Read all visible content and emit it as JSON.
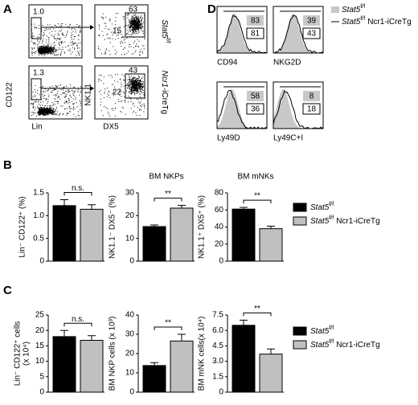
{
  "panel_a": {
    "label": "A",
    "rows": [
      {
        "lin_gate": "1.0",
        "nk_gates": [
          63,
          15
        ],
        "genotype": {
          "gene": "Stat5",
          "sup": "f/f"
        }
      },
      {
        "lin_gate": "1.3",
        "nk_gates": [
          43,
          22
        ],
        "genotype": {
          "gene": "Ncr1",
          "suffix": "-iCreTg"
        }
      }
    ],
    "lin_axis": {
      "x": "Lin",
      "y": "CD122"
    },
    "nk_axis": {
      "x": "DX5",
      "y": "NK1.1"
    }
  },
  "panel_d": {
    "label": "D",
    "plots": [
      {
        "marker": "CD94",
        "values": [
          83,
          81
        ]
      },
      {
        "marker": "NKG2D",
        "values": [
          39,
          43
        ]
      },
      {
        "marker": "Ly49D",
        "values": [
          58,
          36
        ]
      },
      {
        "marker": "Ly49C+I",
        "values": [
          8,
          18
        ]
      }
    ],
    "legend": [
      {
        "gene": "Stat5",
        "sup": "f/f",
        "color": "#c8c8c8"
      },
      {
        "gene": "Stat5",
        "sup": "f/f",
        "suffix": "Ncr1-iCreTg",
        "color": "#000000"
      }
    ]
  },
  "panel_b": {
    "label": "B",
    "legend": [
      {
        "gene": "Stat5",
        "sup": "f/f",
        "color": "#000000"
      },
      {
        "gene": "Stat5",
        "sup": "f/f",
        "suffix": "Ncr1-iCreTg",
        "color": "#c0c0c0"
      }
    ]
  },
  "panel_c": {
    "label": "C",
    "legend": [
      {
        "gene": "Stat5",
        "sup": "f/f",
        "color": "#000000"
      },
      {
        "gene": "Stat5",
        "sup": "f/f",
        "suffix": "Ncr1-iCreTg",
        "color": "#c0c0c0"
      }
    ]
  },
  "chart_data": [
    {
      "type": "bar",
      "ylabel": "Lin⁻ CD122⁺ (%)",
      "annotation": "n.s.",
      "ylim": [
        0,
        1.5
      ],
      "yticks": [
        0,
        0.5,
        {
          "value": 1,
          "label": "1.0"
        },
        1.5
      ],
      "series": [
        {
          "color": "#000000",
          "values": [
            1.22
          ],
          "errors": [
            0.13
          ]
        },
        {
          "color": "#c0c0c0",
          "values": [
            1.14
          ],
          "errors": [
            0.1
          ]
        }
      ]
    },
    {
      "type": "bar",
      "title": "BM NKPs",
      "ylabel": "NK1.1⁻ DX5⁻ (%)",
      "annotation": "**",
      "ylim": [
        0,
        30
      ],
      "yticks": [
        0,
        10,
        20,
        30
      ],
      "series": [
        {
          "color": "#000000",
          "values": [
            15.2
          ],
          "errors": [
            0.7
          ]
        },
        {
          "color": "#c0c0c0",
          "values": [
            23.3
          ],
          "errors": [
            1.2
          ]
        }
      ]
    },
    {
      "type": "bar",
      "title": "BM mNKs",
      "ylabel": "NK1.1⁺ DX5⁺ (%)",
      "annotation": "**",
      "ylim": [
        0,
        80
      ],
      "yticks": [
        0,
        20,
        40,
        60,
        80
      ],
      "series": [
        {
          "color": "#000000",
          "values": [
            61
          ],
          "errors": [
            2
          ]
        },
        {
          "color": "#c0c0c0",
          "values": [
            38
          ],
          "errors": [
            3
          ]
        }
      ]
    },
    {
      "type": "bar",
      "ylabel": [
        "Lin⁻ CD122⁺ cells",
        "(x 10⁴)"
      ],
      "annotation": "n.s.",
      "ylim": [
        0,
        25
      ],
      "yticks": [
        0,
        5,
        10,
        15,
        20,
        25
      ],
      "series": [
        {
          "color": "#000000",
          "values": [
            18
          ],
          "errors": [
            2
          ]
        },
        {
          "color": "#c0c0c0",
          "values": [
            16.8
          ],
          "errors": [
            1.5
          ]
        }
      ]
    },
    {
      "type": "bar",
      "ylabel": "BM NKP cells (x 10³)",
      "annotation": "**",
      "ylim": [
        0,
        40
      ],
      "yticks": [
        0,
        10,
        20,
        30,
        40
      ],
      "series": [
        {
          "color": "#000000",
          "values": [
            13.8
          ],
          "errors": [
            1.5
          ]
        },
        {
          "color": "#c0c0c0",
          "values": [
            26.5
          ],
          "errors": [
            3.5
          ]
        }
      ]
    },
    {
      "type": "bar",
      "ylabel": "BM mNK cells(x 10⁴)",
      "annotation": "**",
      "ylim": [
        0,
        7.5
      ],
      "yticks": [
        0,
        1.5,
        {
          "value": 3,
          "label": "3.0"
        },
        4.5,
        {
          "value": 6,
          "label": "6.0"
        },
        7.5
      ],
      "series": [
        {
          "color": "#000000",
          "values": [
            6.5
          ],
          "errors": [
            0.5
          ]
        },
        {
          "color": "#c0c0c0",
          "values": [
            3.7
          ],
          "errors": [
            0.5
          ]
        }
      ]
    }
  ]
}
